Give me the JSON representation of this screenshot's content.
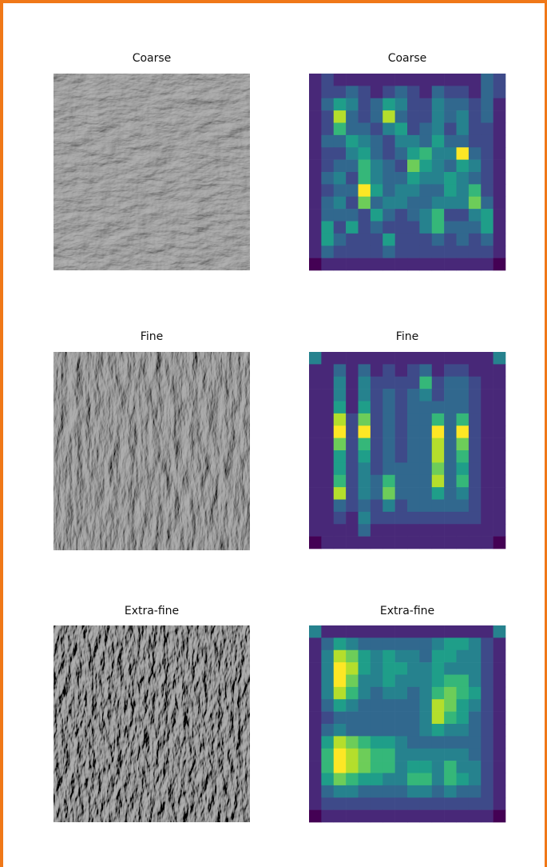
{
  "panels": [
    {
      "left_title": "Coarse",
      "right_title": "Coarse",
      "grid": [
        [
          1,
          2,
          1,
          1,
          1,
          1,
          1,
          1,
          1,
          1,
          1,
          1,
          1,
          1,
          3,
          2
        ],
        [
          1,
          2,
          2,
          3,
          2,
          1,
          2,
          3,
          2,
          1,
          3,
          2,
          2,
          1,
          3,
          2
        ],
        [
          1,
          3,
          5,
          4,
          2,
          3,
          5,
          4,
          2,
          2,
          4,
          3,
          3,
          2,
          3,
          1
        ],
        [
          1,
          2,
          8,
          3,
          2,
          3,
          8,
          3,
          2,
          2,
          4,
          3,
          4,
          2,
          3,
          1
        ],
        [
          1,
          2,
          6,
          3,
          3,
          2,
          4,
          5,
          2,
          3,
          4,
          2,
          4,
          2,
          2,
          1
        ],
        [
          1,
          3,
          3,
          5,
          4,
          3,
          2,
          4,
          4,
          3,
          5,
          3,
          3,
          2,
          2,
          1
        ],
        [
          1,
          2,
          2,
          4,
          5,
          3,
          2,
          3,
          5,
          6,
          4,
          4,
          9,
          3,
          2,
          1
        ],
        [
          1,
          2,
          3,
          3,
          6,
          4,
          3,
          2,
          7,
          5,
          4,
          3,
          5,
          4,
          2,
          1
        ],
        [
          1,
          3,
          4,
          2,
          6,
          4,
          3,
          3,
          5,
          4,
          4,
          5,
          4,
          3,
          2,
          1
        ],
        [
          1,
          2,
          3,
          3,
          9,
          5,
          3,
          4,
          4,
          3,
          3,
          5,
          4,
          6,
          2,
          1
        ],
        [
          1,
          3,
          4,
          2,
          7,
          3,
          4,
          4,
          3,
          3,
          4,
          4,
          4,
          7,
          3,
          1
        ],
        [
          1,
          3,
          3,
          3,
          2,
          5,
          3,
          2,
          3,
          4,
          6,
          2,
          2,
          4,
          5,
          1
        ],
        [
          1,
          5,
          2,
          5,
          2,
          3,
          2,
          2,
          2,
          4,
          6,
          3,
          3,
          3,
          5,
          1
        ],
        [
          1,
          5,
          3,
          2,
          2,
          2,
          5,
          2,
          2,
          2,
          3,
          2,
          3,
          2,
          3,
          1
        ],
        [
          1,
          3,
          2,
          2,
          2,
          2,
          3,
          2,
          2,
          2,
          2,
          2,
          2,
          2,
          2,
          1
        ],
        [
          0,
          1,
          1,
          1,
          1,
          1,
          1,
          1,
          1,
          1,
          1,
          1,
          1,
          1,
          1,
          0
        ]
      ]
    },
    {
      "left_title": "Fine",
      "right_title": "Fine",
      "grid": [
        [
          4,
          1,
          1,
          1,
          1,
          1,
          1,
          1,
          1,
          1,
          1,
          1,
          1,
          1,
          1,
          4
        ],
        [
          1,
          1,
          3,
          1,
          3,
          1,
          2,
          1,
          2,
          3,
          1,
          2,
          2,
          1,
          1,
          1
        ],
        [
          1,
          1,
          4,
          1,
          4,
          2,
          2,
          2,
          2,
          6,
          2,
          3,
          3,
          2,
          1,
          1
        ],
        [
          1,
          1,
          4,
          1,
          4,
          2,
          3,
          2,
          3,
          4,
          2,
          3,
          3,
          2,
          1,
          1
        ],
        [
          1,
          1,
          5,
          1,
          5,
          2,
          3,
          2,
          3,
          3,
          3,
          3,
          3,
          2,
          1,
          1
        ],
        [
          1,
          1,
          8,
          2,
          7,
          2,
          3,
          2,
          3,
          3,
          6,
          3,
          6,
          2,
          1,
          1
        ],
        [
          1,
          1,
          9,
          2,
          9,
          2,
          3,
          2,
          3,
          3,
          9,
          3,
          9,
          2,
          1,
          1
        ],
        [
          1,
          1,
          7,
          2,
          6,
          2,
          3,
          2,
          3,
          3,
          8,
          3,
          7,
          2,
          1,
          1
        ],
        [
          1,
          1,
          5,
          2,
          5,
          2,
          3,
          2,
          3,
          3,
          8,
          3,
          6,
          2,
          1,
          1
        ],
        [
          1,
          1,
          5,
          2,
          4,
          2,
          3,
          3,
          3,
          3,
          7,
          3,
          5,
          2,
          1,
          1
        ],
        [
          1,
          1,
          6,
          2,
          4,
          3,
          6,
          3,
          3,
          3,
          8,
          3,
          6,
          2,
          1,
          1
        ],
        [
          1,
          1,
          8,
          2,
          4,
          3,
          7,
          3,
          3,
          3,
          5,
          3,
          4,
          2,
          1,
          1
        ],
        [
          1,
          1,
          3,
          2,
          3,
          2,
          4,
          2,
          3,
          3,
          3,
          3,
          3,
          2,
          1,
          1
        ],
        [
          1,
          1,
          2,
          1,
          4,
          2,
          2,
          2,
          2,
          2,
          2,
          2,
          2,
          2,
          1,
          1
        ],
        [
          1,
          1,
          1,
          1,
          3,
          1,
          1,
          1,
          1,
          1,
          1,
          1,
          1,
          1,
          1,
          1
        ],
        [
          0,
          1,
          1,
          1,
          1,
          1,
          1,
          1,
          1,
          1,
          1,
          1,
          1,
          1,
          1,
          0
        ]
      ]
    },
    {
      "left_title": "Extra-fine",
      "right_title": "Extra-fine",
      "grid": [
        [
          4,
          1,
          1,
          1,
          1,
          1,
          1,
          1,
          1,
          1,
          1,
          1,
          1,
          1,
          1,
          4
        ],
        [
          1,
          3,
          5,
          4,
          3,
          3,
          3,
          3,
          3,
          3,
          4,
          5,
          5,
          4,
          2,
          1
        ],
        [
          1,
          4,
          8,
          7,
          5,
          4,
          5,
          4,
          4,
          3,
          5,
          5,
          4,
          4,
          2,
          1
        ],
        [
          1,
          4,
          9,
          8,
          5,
          4,
          5,
          5,
          4,
          4,
          5,
          4,
          4,
          4,
          2,
          1
        ],
        [
          1,
          4,
          9,
          7,
          4,
          4,
          5,
          4,
          4,
          4,
          5,
          6,
          6,
          4,
          2,
          1
        ],
        [
          1,
          4,
          8,
          6,
          4,
          3,
          4,
          4,
          3,
          4,
          6,
          7,
          6,
          5,
          2,
          1
        ],
        [
          1,
          3,
          5,
          4,
          3,
          3,
          3,
          3,
          3,
          4,
          8,
          7,
          5,
          4,
          2,
          1
        ],
        [
          1,
          2,
          3,
          3,
          3,
          3,
          3,
          3,
          3,
          4,
          8,
          6,
          5,
          3,
          2,
          1
        ],
        [
          1,
          3,
          4,
          3,
          3,
          3,
          3,
          3,
          3,
          4,
          5,
          4,
          4,
          3,
          2,
          1
        ],
        [
          1,
          5,
          8,
          7,
          6,
          5,
          5,
          4,
          3,
          3,
          3,
          3,
          3,
          3,
          2,
          1
        ],
        [
          1,
          6,
          9,
          8,
          7,
          6,
          6,
          4,
          4,
          4,
          4,
          4,
          4,
          3,
          2,
          1
        ],
        [
          1,
          6,
          9,
          8,
          7,
          6,
          6,
          4,
          5,
          5,
          4,
          6,
          4,
          4,
          2,
          1
        ],
        [
          1,
          5,
          7,
          6,
          5,
          5,
          4,
          4,
          6,
          6,
          4,
          6,
          5,
          4,
          2,
          1
        ],
        [
          1,
          3,
          4,
          4,
          3,
          3,
          3,
          3,
          4,
          4,
          3,
          4,
          3,
          3,
          2,
          1
        ],
        [
          1,
          2,
          2,
          2,
          2,
          2,
          2,
          2,
          2,
          2,
          2,
          2,
          2,
          2,
          2,
          1
        ],
        [
          0,
          1,
          1,
          1,
          1,
          1,
          1,
          1,
          1,
          1,
          1,
          1,
          1,
          1,
          1,
          0
        ]
      ]
    }
  ]
}
